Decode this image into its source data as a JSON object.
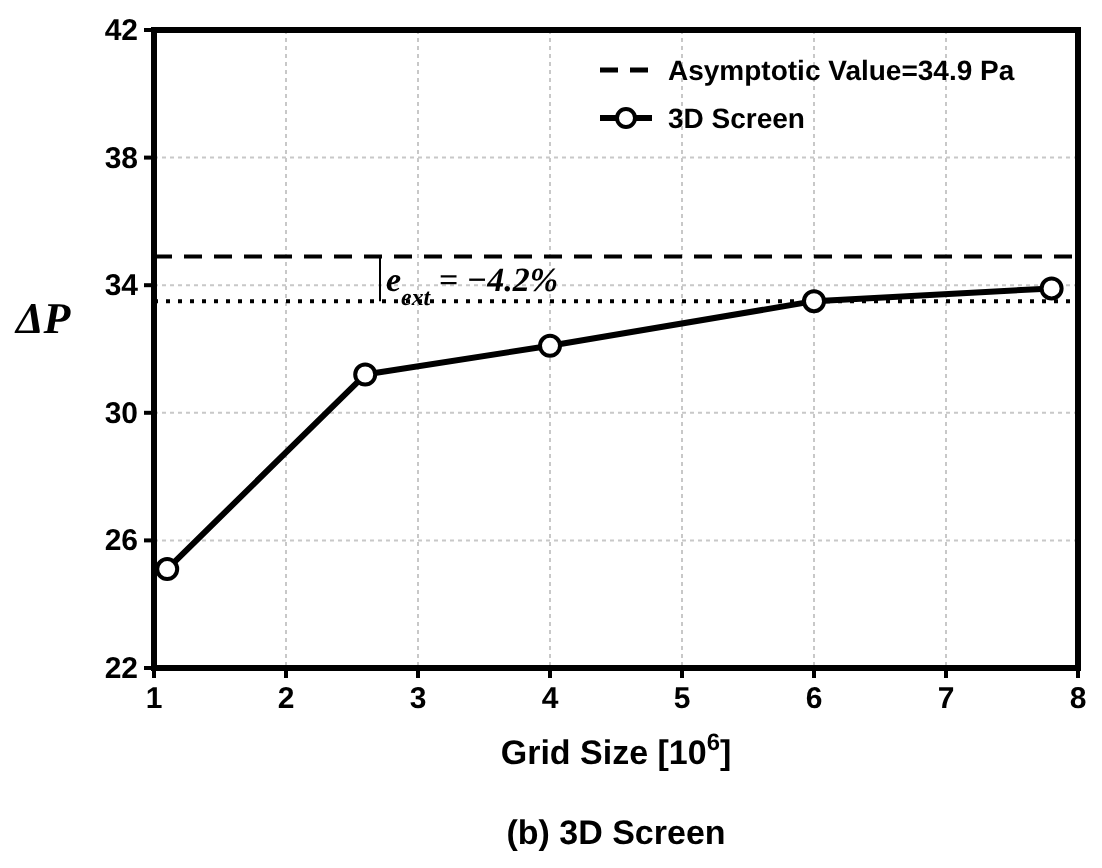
{
  "chart_data": {
    "type": "line",
    "title": "(b) 3D Screen",
    "xlabel": "Grid Size [10$^{6}$]",
    "ylabel": "ΔP",
    "x": [
      1.1,
      2.6,
      4,
      6,
      7.8
    ],
    "series": [
      {
        "name": "3D Screen",
        "color": "#000000",
        "values": [
          25.1,
          31.2,
          32.1,
          33.5,
          33.9
        ]
      }
    ],
    "xlim": [
      1,
      8
    ],
    "xticks": [
      1,
      2,
      3,
      4,
      5,
      6,
      7,
      8
    ],
    "ylim": [
      22,
      42
    ],
    "yticks": [
      22,
      26,
      30,
      34,
      38,
      42
    ],
    "ref_lines": [
      {
        "axis": "y",
        "value": 34.9,
        "label": "Asymptotic Value=34.9 Pa",
        "color": "#000000",
        "line_style": "dashed"
      },
      {
        "axis": "y",
        "value": 33.5,
        "label": null,
        "color": "#000000",
        "line_style": "dotted"
      }
    ],
    "annotations": [
      "e$_{ext}$ = −4.2%"
    ],
    "grid": true,
    "legend": "top right",
    "marker": "circle",
    "line_style": "solid"
  }
}
